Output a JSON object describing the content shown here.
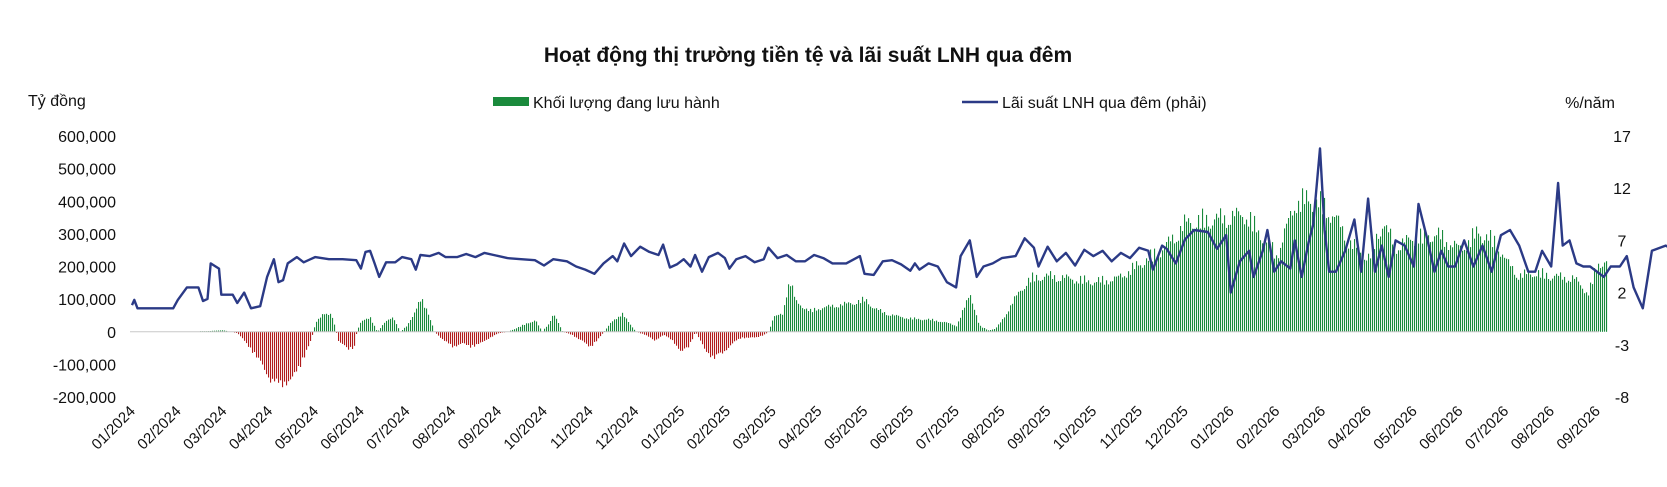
{
  "chart_data": {
    "type": "bar+line",
    "title": "Hoạt động thị trường tiền tệ và lãi suất LNH qua đêm",
    "y_left_unit": "Tỷ đồng",
    "y_right_unit": "%/năm",
    "y_left_ticks": [
      "600,000",
      "500,000",
      "400,000",
      "300,000",
      "200,000",
      "100,000",
      "0",
      "-100,000",
      "-200,000"
    ],
    "y_left_values": [
      600000,
      500000,
      400000,
      300000,
      200000,
      100000,
      0,
      -100000,
      -200000
    ],
    "y_right_ticks": [
      "17",
      "12",
      "7",
      "2",
      "-3",
      "-8"
    ],
    "y_right_values": [
      17,
      12,
      7,
      2,
      -3,
      -8
    ],
    "ylim_left": [
      -200000,
      600000
    ],
    "ylim_right": [
      -8,
      17
    ],
    "x_ticks": [
      "01/2024",
      "02/2024",
      "03/2024",
      "04/2024",
      "05/2024",
      "06/2024",
      "07/2024",
      "08/2024",
      "09/2024",
      "10/2024",
      "11/2024",
      "12/2024",
      "01/2025",
      "02/2025",
      "03/2025",
      "04/2025",
      "05/2025",
      "06/2025",
      "07/2025",
      "08/2025",
      "09/2025",
      "10/2025",
      "11/2025",
      "12/2025",
      "01/2026",
      "02/2026",
      "03/2026",
      "04/2026",
      "05/2026",
      "06/2026",
      "07/2026",
      "08/2026",
      "09/2026"
    ],
    "legend": [
      {
        "name": "Khối lượng đang lưu hành",
        "color": "#1a8a3c",
        "kind": "bar"
      },
      {
        "name": "Lãi suất LNH qua đêm (phải)",
        "color": "#2b3a86",
        "kind": "line"
      }
    ],
    "positive_color": "#1a8a3c",
    "negative_color": "#b01c1c",
    "volume_anchors": [
      [
        0.0,
        0
      ],
      [
        0.8,
        0
      ],
      [
        1.6,
        2000
      ],
      [
        2.0,
        5000
      ],
      [
        2.3,
        -5000
      ],
      [
        2.6,
        -60000
      ],
      [
        2.9,
        -130000
      ],
      [
        3.0,
        -160000
      ],
      [
        3.2,
        -180000
      ],
      [
        3.5,
        -160000
      ],
      [
        3.7,
        -100000
      ],
      [
        3.9,
        -30000
      ],
      [
        4.0,
        30000
      ],
      [
        4.2,
        65000
      ],
      [
        4.35,
        60000
      ],
      [
        4.45,
        0
      ],
      [
        4.5,
        -30000
      ],
      [
        4.7,
        -60000
      ],
      [
        4.85,
        -50000
      ],
      [
        4.9,
        0
      ],
      [
        5.0,
        40000
      ],
      [
        5.2,
        45000
      ],
      [
        5.35,
        0
      ],
      [
        5.5,
        30000
      ],
      [
        5.7,
        50000
      ],
      [
        5.85,
        0
      ],
      [
        6.0,
        20000
      ],
      [
        6.2,
        80000
      ],
      [
        6.3,
        110000
      ],
      [
        6.45,
        70000
      ],
      [
        6.6,
        0
      ],
      [
        6.8,
        -30000
      ],
      [
        7.0,
        -50000
      ],
      [
        7.2,
        -40000
      ],
      [
        7.4,
        -50000
      ],
      [
        7.6,
        -40000
      ],
      [
        7.8,
        -20000
      ],
      [
        8.0,
        -5000
      ],
      [
        8.2,
        0
      ],
      [
        8.5,
        20000
      ],
      [
        8.8,
        40000
      ],
      [
        8.95,
        0
      ],
      [
        9.1,
        30000
      ],
      [
        9.2,
        60000
      ],
      [
        9.3,
        30000
      ],
      [
        9.4,
        0
      ],
      [
        9.6,
        -10000
      ],
      [
        9.8,
        -30000
      ],
      [
        10.0,
        -50000
      ],
      [
        10.15,
        -30000
      ],
      [
        10.3,
        0
      ],
      [
        10.5,
        40000
      ],
      [
        10.7,
        60000
      ],
      [
        10.85,
        30000
      ],
      [
        11.0,
        0
      ],
      [
        11.2,
        -10000
      ],
      [
        11.4,
        -30000
      ],
      [
        11.6,
        -10000
      ],
      [
        11.8,
        -30000
      ],
      [
        12.0,
        -70000
      ],
      [
        12.15,
        -50000
      ],
      [
        12.3,
        0
      ],
      [
        12.5,
        -60000
      ],
      [
        12.7,
        -90000
      ],
      [
        12.9,
        -70000
      ],
      [
        13.1,
        -40000
      ],
      [
        13.3,
        -20000
      ],
      [
        13.6,
        -20000
      ],
      [
        13.8,
        -10000
      ],
      [
        13.9,
        0
      ],
      [
        14.0,
        50000
      ],
      [
        14.2,
        60000
      ],
      [
        14.35,
        180000
      ],
      [
        14.5,
        100000
      ],
      [
        14.8,
        70000
      ],
      [
        15.0,
        80000
      ],
      [
        15.4,
        90000
      ],
      [
        15.8,
        100000
      ],
      [
        16.0,
        110000
      ],
      [
        16.2,
        80000
      ],
      [
        16.5,
        60000
      ],
      [
        16.8,
        50000
      ],
      [
        17.0,
        45000
      ],
      [
        17.5,
        40000
      ],
      [
        17.8,
        30000
      ],
      [
        18.0,
        20000
      ],
      [
        18.3,
        130000
      ],
      [
        18.5,
        20000
      ],
      [
        18.7,
        5000
      ],
      [
        18.85,
        10000
      ],
      [
        19.0,
        40000
      ],
      [
        19.3,
        120000
      ],
      [
        19.6,
        180000
      ],
      [
        20.0,
        190000
      ],
      [
        20.5,
        180000
      ],
      [
        21.0,
        170000
      ],
      [
        21.5,
        180000
      ],
      [
        22.0,
        230000
      ],
      [
        22.5,
        280000
      ],
      [
        22.8,
        330000
      ],
      [
        23.0,
        370000
      ],
      [
        23.5,
        380000
      ],
      [
        24.0,
        390000
      ],
      [
        24.3,
        400000
      ],
      [
        24.6,
        340000
      ],
      [
        25.0,
        260000
      ],
      [
        25.2,
        350000
      ],
      [
        25.4,
        440000
      ],
      [
        25.7,
        450000
      ],
      [
        26.0,
        430000
      ],
      [
        26.3,
        380000
      ],
      [
        26.6,
        300000
      ],
      [
        27.0,
        250000
      ],
      [
        27.3,
        370000
      ],
      [
        27.6,
        290000
      ],
      [
        28.0,
        320000
      ],
      [
        28.5,
        330000
      ],
      [
        29.0,
        280000
      ],
      [
        29.4,
        340000
      ],
      [
        29.8,
        300000
      ],
      [
        30.0,
        240000
      ],
      [
        30.3,
        190000
      ],
      [
        30.6,
        200000
      ],
      [
        31.0,
        190000
      ],
      [
        31.5,
        180000
      ],
      [
        31.8,
        130000
      ],
      [
        32.0,
        230000
      ],
      [
        32.2,
        240000
      ]
    ],
    "rate_anchors": [
      [
        0.0,
        0.8
      ],
      [
        0.05,
        1.3
      ],
      [
        0.12,
        0.5
      ],
      [
        0.3,
        0.5
      ],
      [
        0.9,
        0.5
      ],
      [
        1.0,
        1.3
      ],
      [
        1.2,
        2.5
      ],
      [
        1.45,
        2.5
      ],
      [
        1.55,
        1.2
      ],
      [
        1.65,
        1.4
      ],
      [
        1.72,
        4.8
      ],
      [
        1.9,
        4.3
      ],
      [
        1.95,
        1.8
      ],
      [
        2.2,
        1.8
      ],
      [
        2.3,
        1.0
      ],
      [
        2.45,
        2.0
      ],
      [
        2.6,
        0.5
      ],
      [
        2.8,
        0.7
      ],
      [
        2.95,
        3.5
      ],
      [
        3.1,
        5.2
      ],
      [
        3.2,
        3.0
      ],
      [
        3.3,
        3.2
      ],
      [
        3.4,
        4.8
      ],
      [
        3.6,
        5.4
      ],
      [
        3.75,
        4.9
      ],
      [
        3.9,
        5.2
      ],
      [
        4.0,
        5.4
      ],
      [
        4.3,
        5.2
      ],
      [
        4.6,
        5.2
      ],
      [
        4.9,
        5.1
      ],
      [
        5.0,
        4.3
      ],
      [
        5.1,
        5.9
      ],
      [
        5.2,
        6.0
      ],
      [
        5.3,
        4.8
      ],
      [
        5.4,
        3.5
      ],
      [
        5.55,
        4.9
      ],
      [
        5.75,
        4.9
      ],
      [
        5.9,
        5.4
      ],
      [
        6.1,
        5.2
      ],
      [
        6.2,
        4.2
      ],
      [
        6.3,
        5.6
      ],
      [
        6.5,
        5.5
      ],
      [
        6.7,
        5.8
      ],
      [
        6.85,
        5.4
      ],
      [
        7.1,
        5.4
      ],
      [
        7.3,
        5.7
      ],
      [
        7.5,
        5.4
      ],
      [
        7.7,
        5.8
      ],
      [
        7.9,
        5.6
      ],
      [
        8.2,
        5.3
      ],
      [
        8.5,
        5.2
      ],
      [
        8.8,
        5.1
      ],
      [
        9.0,
        4.6
      ],
      [
        9.2,
        5.2
      ],
      [
        9.5,
        5.0
      ],
      [
        9.7,
        4.5
      ],
      [
        9.9,
        4.2
      ],
      [
        10.1,
        3.8
      ],
      [
        10.3,
        4.8
      ],
      [
        10.5,
        5.5
      ],
      [
        10.6,
        5.0
      ],
      [
        10.75,
        6.7
      ],
      [
        10.9,
        5.5
      ],
      [
        11.1,
        6.4
      ],
      [
        11.3,
        5.9
      ],
      [
        11.5,
        5.6
      ],
      [
        11.6,
        6.6
      ],
      [
        11.75,
        4.4
      ],
      [
        11.9,
        4.7
      ],
      [
        12.05,
        5.2
      ],
      [
        12.2,
        4.5
      ],
      [
        12.3,
        5.6
      ],
      [
        12.45,
        4.0
      ],
      [
        12.6,
        5.4
      ],
      [
        12.8,
        5.8
      ],
      [
        12.95,
        5.3
      ],
      [
        13.05,
        4.3
      ],
      [
        13.2,
        5.2
      ],
      [
        13.4,
        5.5
      ],
      [
        13.6,
        4.9
      ],
      [
        13.8,
        5.2
      ],
      [
        13.9,
        6.3
      ],
      [
        14.1,
        5.3
      ],
      [
        14.3,
        5.6
      ],
      [
        14.5,
        5.0
      ],
      [
        14.7,
        5.0
      ],
      [
        14.9,
        5.6
      ],
      [
        15.1,
        5.3
      ],
      [
        15.3,
        4.8
      ],
      [
        15.6,
        4.8
      ],
      [
        15.9,
        5.5
      ],
      [
        16.0,
        3.8
      ],
      [
        16.2,
        3.7
      ],
      [
        16.4,
        5.0
      ],
      [
        16.6,
        5.1
      ],
      [
        16.8,
        4.7
      ],
      [
        17.0,
        4.1
      ],
      [
        17.1,
        4.8
      ],
      [
        17.2,
        4.2
      ],
      [
        17.4,
        4.8
      ],
      [
        17.6,
        4.5
      ],
      [
        17.8,
        3.0
      ],
      [
        18.0,
        2.5
      ],
      [
        18.1,
        5.5
      ],
      [
        18.3,
        7.0
      ],
      [
        18.45,
        3.5
      ],
      [
        18.6,
        4.5
      ],
      [
        18.8,
        4.8
      ],
      [
        19.0,
        5.3
      ],
      [
        19.3,
        5.5
      ],
      [
        19.5,
        7.2
      ],
      [
        19.7,
        6.3
      ],
      [
        19.8,
        4.5
      ],
      [
        20.0,
        6.4
      ],
      [
        20.2,
        5.0
      ],
      [
        20.4,
        5.8
      ],
      [
        20.6,
        4.6
      ],
      [
        20.8,
        6.1
      ],
      [
        21.0,
        5.5
      ],
      [
        21.2,
        6.0
      ],
      [
        21.4,
        5.0
      ],
      [
        21.6,
        5.8
      ],
      [
        21.8,
        5.3
      ],
      [
        22.0,
        6.3
      ],
      [
        22.2,
        6.0
      ],
      [
        22.3,
        4.2
      ],
      [
        22.5,
        6.5
      ],
      [
        22.6,
        6.2
      ],
      [
        22.8,
        4.8
      ],
      [
        23.0,
        7.1
      ],
      [
        23.2,
        8.0
      ],
      [
        23.5,
        7.8
      ],
      [
        23.7,
        6.2
      ],
      [
        23.9,
        7.5
      ],
      [
        24.0,
        2.0
      ],
      [
        24.2,
        5.0
      ],
      [
        24.4,
        6.0
      ],
      [
        24.5,
        3.5
      ],
      [
        24.7,
        6.0
      ],
      [
        24.8,
        8.0
      ],
      [
        24.95,
        4.0
      ],
      [
        25.1,
        5.0
      ],
      [
        25.3,
        4.3
      ],
      [
        25.4,
        7.0
      ],
      [
        25.55,
        3.5
      ],
      [
        25.7,
        6.8
      ],
      [
        25.8,
        8.5
      ],
      [
        25.95,
        15.8
      ],
      [
        26.05,
        8.0
      ],
      [
        26.15,
        4.0
      ],
      [
        26.3,
        4.0
      ],
      [
        26.5,
        6.0
      ],
      [
        26.7,
        9.0
      ],
      [
        26.85,
        4.0
      ],
      [
        27.0,
        11.0
      ],
      [
        27.15,
        4.0
      ],
      [
        27.3,
        6.5
      ],
      [
        27.45,
        3.5
      ],
      [
        27.6,
        7.0
      ],
      [
        27.8,
        6.5
      ],
      [
        28.0,
        4.5
      ],
      [
        28.1,
        10.5
      ],
      [
        28.3,
        7.0
      ],
      [
        28.45,
        4.0
      ],
      [
        28.6,
        6.0
      ],
      [
        28.75,
        4.5
      ],
      [
        28.9,
        4.5
      ],
      [
        29.1,
        7.0
      ],
      [
        29.3,
        4.5
      ],
      [
        29.5,
        6.5
      ],
      [
        29.7,
        4.0
      ],
      [
        29.9,
        7.5
      ],
      [
        30.1,
        8.0
      ],
      [
        30.3,
        6.5
      ],
      [
        30.5,
        4.0
      ],
      [
        30.65,
        4.0
      ],
      [
        30.8,
        6.0
      ],
      [
        31.0,
        4.5
      ],
      [
        31.15,
        12.5
      ],
      [
        31.25,
        6.5
      ],
      [
        31.4,
        7.0
      ],
      [
        31.55,
        4.8
      ],
      [
        31.7,
        4.5
      ],
      [
        31.85,
        4.5
      ],
      [
        32.0,
        4.0
      ],
      [
        32.15,
        3.5
      ],
      [
        32.3,
        4.5
      ],
      [
        32.5,
        4.5
      ],
      [
        32.65,
        5.5
      ],
      [
        32.8,
        2.5
      ],
      [
        33.0,
        0.5
      ],
      [
        33.2,
        6.0
      ],
      [
        33.5,
        6.5
      ],
      [
        33.7,
        6.0
      ],
      [
        33.85,
        4.5
      ],
      [
        34.0,
        4.0
      ],
      [
        34.2,
        5.5
      ],
      [
        34.35,
        5.0
      ],
      [
        34.5,
        2.5
      ],
      [
        34.7,
        1.5
      ],
      [
        34.85,
        1.5
      ],
      [
        34.95,
        6.3
      ]
    ]
  }
}
